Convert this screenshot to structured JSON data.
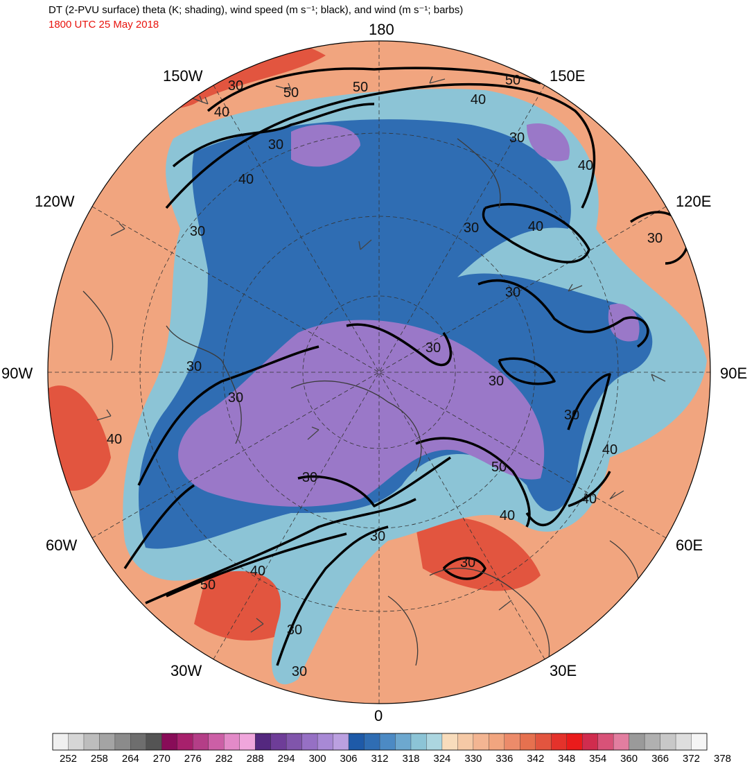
{
  "header": {
    "title": "DT (2-PVU surface) theta (K; shading), wind speed (m s⁻¹; black), and wind (m s⁻¹; barbs)",
    "valid_time": "1800 UTC 25 May 2018"
  },
  "map": {
    "projection": "north-polar-stereographic",
    "longitude_labels": {
      "lon_180": "180",
      "lon_150e": "150E",
      "lon_120e": "120E",
      "lon_90e": "90E",
      "lon_60e": "60E",
      "lon_30e": "30E",
      "lon_0": "0",
      "lon_30w": "30W",
      "lon_60w": "60W",
      "lon_90w": "90W",
      "lon_120w": "120W",
      "lon_150w": "150W"
    },
    "contour_labels": [
      "30",
      "50",
      "50",
      "50",
      "40",
      "40",
      "30",
      "40",
      "30",
      "40",
      "30",
      "30",
      "40",
      "30",
      "30",
      "30",
      "30",
      "30",
      "40",
      "30",
      "30",
      "50",
      "40",
      "40",
      "30",
      "40",
      "50",
      "40",
      "30",
      "30",
      "30",
      "30"
    ],
    "colors": {
      "cold": "#9a78c8",
      "mid": "#2f6db3",
      "transition": "#8cc4d6",
      "warm": "#f1a57f",
      "hot": "#e2553f",
      "contour": "#000000",
      "title_time": "#e8120c"
    }
  },
  "colorbar": {
    "ticks": [
      "252",
      "258",
      "264",
      "270",
      "276",
      "282",
      "288",
      "294",
      "300",
      "306",
      "312",
      "318",
      "324",
      "330",
      "336",
      "342",
      "348",
      "354",
      "360",
      "366",
      "372",
      "378"
    ],
    "colors": [
      "#f0f0f0",
      "#d6d6d6",
      "#bdbdbd",
      "#a4a4a4",
      "#8b8b8b",
      "#6e6e6e",
      "#545454",
      "#880c58",
      "#a7206c",
      "#b43e87",
      "#cc5fa6",
      "#e38ac8",
      "#f0a6dc",
      "#54287f",
      "#6e3d98",
      "#8055ab",
      "#9670c4",
      "#a889d5",
      "#bba0e0",
      "#1e5aa8",
      "#2f6db3",
      "#4c8ac4",
      "#6da8cf",
      "#8cc4d6",
      "#acd6e0",
      "#f8dcbc",
      "#f5c9a6",
      "#f3b592",
      "#f1a57f",
      "#ec8b6a",
      "#e6714f",
      "#e2553f",
      "#e4322b",
      "#ea1b1b",
      "#d02c4e",
      "#d85278",
      "#e27ea0",
      "#9a9a9a",
      "#b0b0b0",
      "#c8c8c8",
      "#dedede",
      "#f5f5f5"
    ]
  }
}
